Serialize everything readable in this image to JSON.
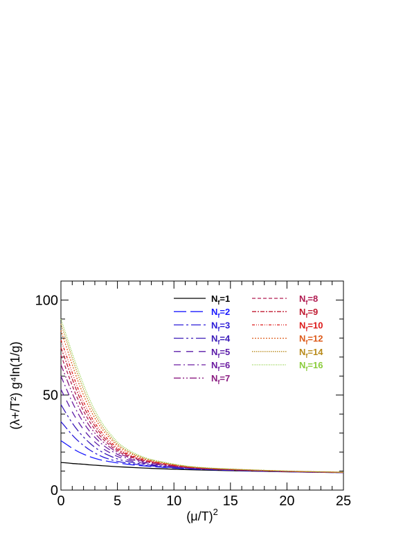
{
  "chart_data": {
    "type": "line",
    "xlabel": "(μ/T)",
    "xlabel_sup": "2",
    "ylabel": "(λ+/T²) g⁴ln(1/g)",
    "xlim": [
      0,
      25
    ],
    "ylim": [
      0,
      110
    ],
    "x_ticks": [
      0,
      5,
      10,
      15,
      20,
      25
    ],
    "y_ticks": [
      0,
      50,
      100
    ],
    "x_tick_labels": [
      "0",
      "5",
      "10",
      "15",
      "20",
      "25"
    ],
    "y_tick_labels": [
      "0",
      "50",
      "100"
    ],
    "grid": false,
    "legend_position": "top-right",
    "x": [
      0,
      0.5,
      1,
      1.5,
      2,
      2.5,
      3,
      3.5,
      4,
      5,
      6,
      7,
      8,
      10,
      12,
      15,
      20,
      25
    ],
    "series": [
      {
        "name": "N_f=1",
        "label_main": "N",
        "label_sub": "f",
        "label_rest": "=1",
        "color": "#000000",
        "dash": "none",
        "col": 0,
        "row": 0,
        "values": [
          14.5,
          14.3,
          14.0,
          13.8,
          13.6,
          13.3,
          13.1,
          12.9,
          12.7,
          12.3,
          12.0,
          11.7,
          11.4,
          11.0,
          10.6,
          10.2,
          9.6,
          9.2
        ]
      },
      {
        "name": "N_f=2",
        "label_main": "N",
        "label_sub": "f",
        "label_rest": "=2",
        "color": "#1a1aff",
        "dash": "18,6",
        "col": 0,
        "row": 1,
        "values": [
          26.0,
          24.0,
          22.0,
          20.3,
          18.9,
          17.7,
          16.7,
          15.9,
          15.3,
          14.3,
          13.5,
          12.9,
          12.4,
          11.6,
          11.0,
          10.4,
          9.7,
          9.2
        ]
      },
      {
        "name": "N_f=3",
        "label_main": "N",
        "label_sub": "f",
        "label_rest": "=3",
        "color": "#2a1ad8",
        "dash": "14,4,3,4",
        "col": 0,
        "row": 2,
        "values": [
          36.0,
          32.5,
          29.0,
          26.0,
          23.5,
          21.3,
          19.5,
          18.0,
          16.8,
          15.1,
          14.1,
          13.3,
          12.7,
          11.8,
          11.1,
          10.5,
          9.7,
          9.2
        ]
      },
      {
        "name": "N_f=4",
        "label_main": "N",
        "label_sub": "f",
        "label_rest": "=4",
        "color": "#3a1ab8",
        "dash": "14,4,3,4,3,4",
        "col": 0,
        "row": 3,
        "values": [
          45.0,
          40.0,
          35.3,
          31.3,
          27.9,
          25.0,
          22.5,
          20.5,
          18.9,
          16.4,
          14.9,
          13.9,
          13.1,
          12.0,
          11.2,
          10.5,
          9.7,
          9.2
        ]
      },
      {
        "name": "N_f=5",
        "label_main": "N",
        "label_sub": "f",
        "label_rest": "=5",
        "color": "#5a1aa8",
        "dash": "10,8",
        "col": 0,
        "row": 4,
        "values": [
          53.0,
          47.0,
          41.2,
          36.2,
          31.9,
          28.3,
          25.3,
          22.8,
          20.8,
          17.7,
          15.7,
          14.4,
          13.5,
          12.2,
          11.3,
          10.6,
          9.8,
          9.3
        ]
      },
      {
        "name": "N_f=6",
        "label_main": "N",
        "label_sub": "f",
        "label_rest": "=6",
        "color": "#6a1aa0",
        "dash": "10,4,2,4",
        "col": 0,
        "row": 5,
        "values": [
          60.0,
          53.0,
          46.3,
          40.5,
          35.5,
          31.3,
          27.8,
          24.9,
          22.5,
          18.8,
          16.5,
          15.0,
          13.9,
          12.4,
          11.4,
          10.7,
          9.8,
          9.3
        ]
      },
      {
        "name": "N_f=7",
        "label_main": "N",
        "label_sub": "f",
        "label_rest": "=7",
        "color": "#8a1a80",
        "dash": "10,3,2,3,2,3",
        "col": 0,
        "row": 6,
        "values": [
          66.0,
          58.5,
          51.0,
          44.5,
          38.8,
          34.0,
          30.0,
          26.7,
          24.0,
          19.8,
          17.2,
          15.5,
          14.3,
          12.6,
          11.5,
          10.7,
          9.8,
          9.3
        ]
      },
      {
        "name": "N_f=8",
        "label_main": "N",
        "label_sub": "f",
        "label_rest": "=8",
        "color": "#b01a50",
        "dash": "5,3",
        "col": 1,
        "row": 0,
        "values": [
          71.0,
          63.0,
          55.0,
          47.8,
          41.6,
          36.4,
          32.0,
          28.3,
          25.3,
          20.6,
          17.8,
          15.9,
          14.6,
          12.8,
          11.6,
          10.8,
          9.9,
          9.3
        ]
      },
      {
        "name": "N_f=9",
        "label_main": "N",
        "label_sub": "f",
        "label_rest": "=9",
        "color": "#c01a30",
        "dash": "6,2,2,2",
        "col": 1,
        "row": 1,
        "values": [
          75.0,
          66.8,
          58.5,
          50.8,
          44.1,
          38.5,
          33.8,
          29.8,
          26.5,
          21.4,
          18.3,
          16.3,
          14.9,
          12.9,
          11.7,
          10.8,
          9.9,
          9.3
        ]
      },
      {
        "name": "N_f=10",
        "label_main": "N",
        "label_sub": "f",
        "label_rest": "=10",
        "color": "#dd1a1a",
        "dash": "4,2,1,2,1,2",
        "col": 1,
        "row": 2,
        "values": [
          79.0,
          70.5,
          61.8,
          53.6,
          46.5,
          40.5,
          35.4,
          31.2,
          27.7,
          22.2,
          18.8,
          16.6,
          15.1,
          13.1,
          11.8,
          10.9,
          9.9,
          9.3
        ]
      },
      {
        "name": "N_f=12",
        "label_main": "N",
        "label_sub": "f",
        "label_rest": "=12",
        "color": "#dd5a1a",
        "dash": "2,2",
        "col": 1,
        "row": 3,
        "values": [
          84.0,
          75.0,
          66.0,
          57.5,
          50.0,
          43.5,
          37.9,
          33.3,
          29.5,
          23.4,
          19.7,
          17.2,
          15.5,
          13.3,
          11.9,
          11.0,
          10.0,
          9.4
        ]
      },
      {
        "name": "N_f=14",
        "label_main": "N",
        "label_sub": "f",
        "label_rest": "=14",
        "color": "#b88a1a",
        "dash": "1.5,1.5",
        "col": 1,
        "row": 4,
        "values": [
          87.5,
          78.5,
          69.5,
          60.8,
          53.0,
          46.0,
          40.0,
          35.0,
          30.8,
          24.3,
          20.3,
          17.6,
          15.8,
          13.5,
          12.0,
          11.0,
          10.0,
          9.4
        ]
      },
      {
        "name": "N_f=16",
        "label_main": "N",
        "label_sub": "f",
        "label_rest": "=16",
        "color": "#8acc3a",
        "dash": "1,1.5",
        "col": 1,
        "row": 5,
        "values": [
          90.0,
          81.0,
          72.0,
          63.5,
          55.5,
          48.3,
          42.0,
          36.7,
          32.3,
          25.3,
          21.0,
          18.1,
          16.1,
          13.7,
          12.1,
          11.1,
          10.0,
          9.4
        ]
      }
    ]
  }
}
